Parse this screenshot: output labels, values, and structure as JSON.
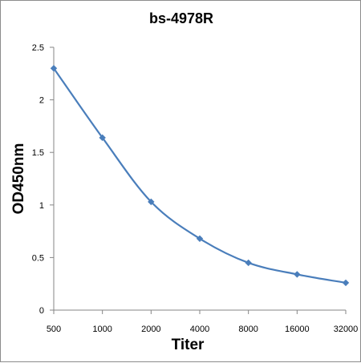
{
  "chart_data": {
    "type": "line",
    "title": "bs-4978R",
    "xlabel": "Titer",
    "ylabel": "OD450nm",
    "categories": [
      "500",
      "1000",
      "2000",
      "4000",
      "8000",
      "16000",
      "32000"
    ],
    "series": [
      {
        "values": [
          2.3,
          1.64,
          1.03,
          0.68,
          0.45,
          0.34,
          0.26
        ]
      }
    ],
    "ylim": [
      0,
      2.5
    ],
    "yticks": [
      "0",
      "0.5",
      "1",
      "1.5",
      "2",
      "2.5"
    ],
    "grid": false,
    "legend": "none",
    "line_color": "#4a7ebb",
    "marker": "diamond"
  }
}
